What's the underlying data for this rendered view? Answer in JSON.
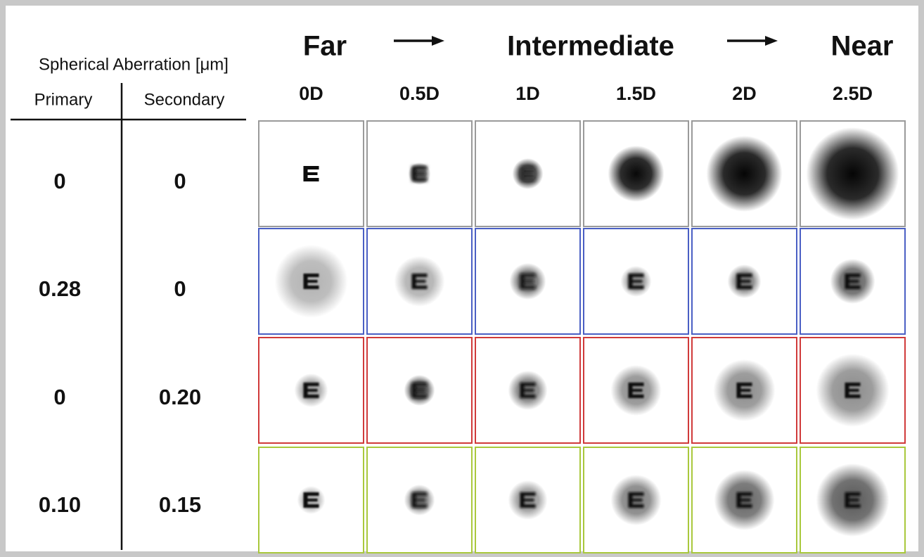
{
  "header": {
    "title": "Spherical Aberration [μm]",
    "columns": [
      "Primary",
      "Secondary"
    ]
  },
  "direction": [
    "Far",
    "Intermediate",
    "Near"
  ],
  "defocus": [
    "0D",
    "0.5D",
    "1D",
    "1.5D",
    "2D",
    "2.5D"
  ],
  "rows": [
    [
      "0",
      "0"
    ],
    [
      "0.28",
      "0"
    ],
    [
      "0",
      "0.20"
    ],
    [
      "0.10",
      "0.15"
    ]
  ]
}
